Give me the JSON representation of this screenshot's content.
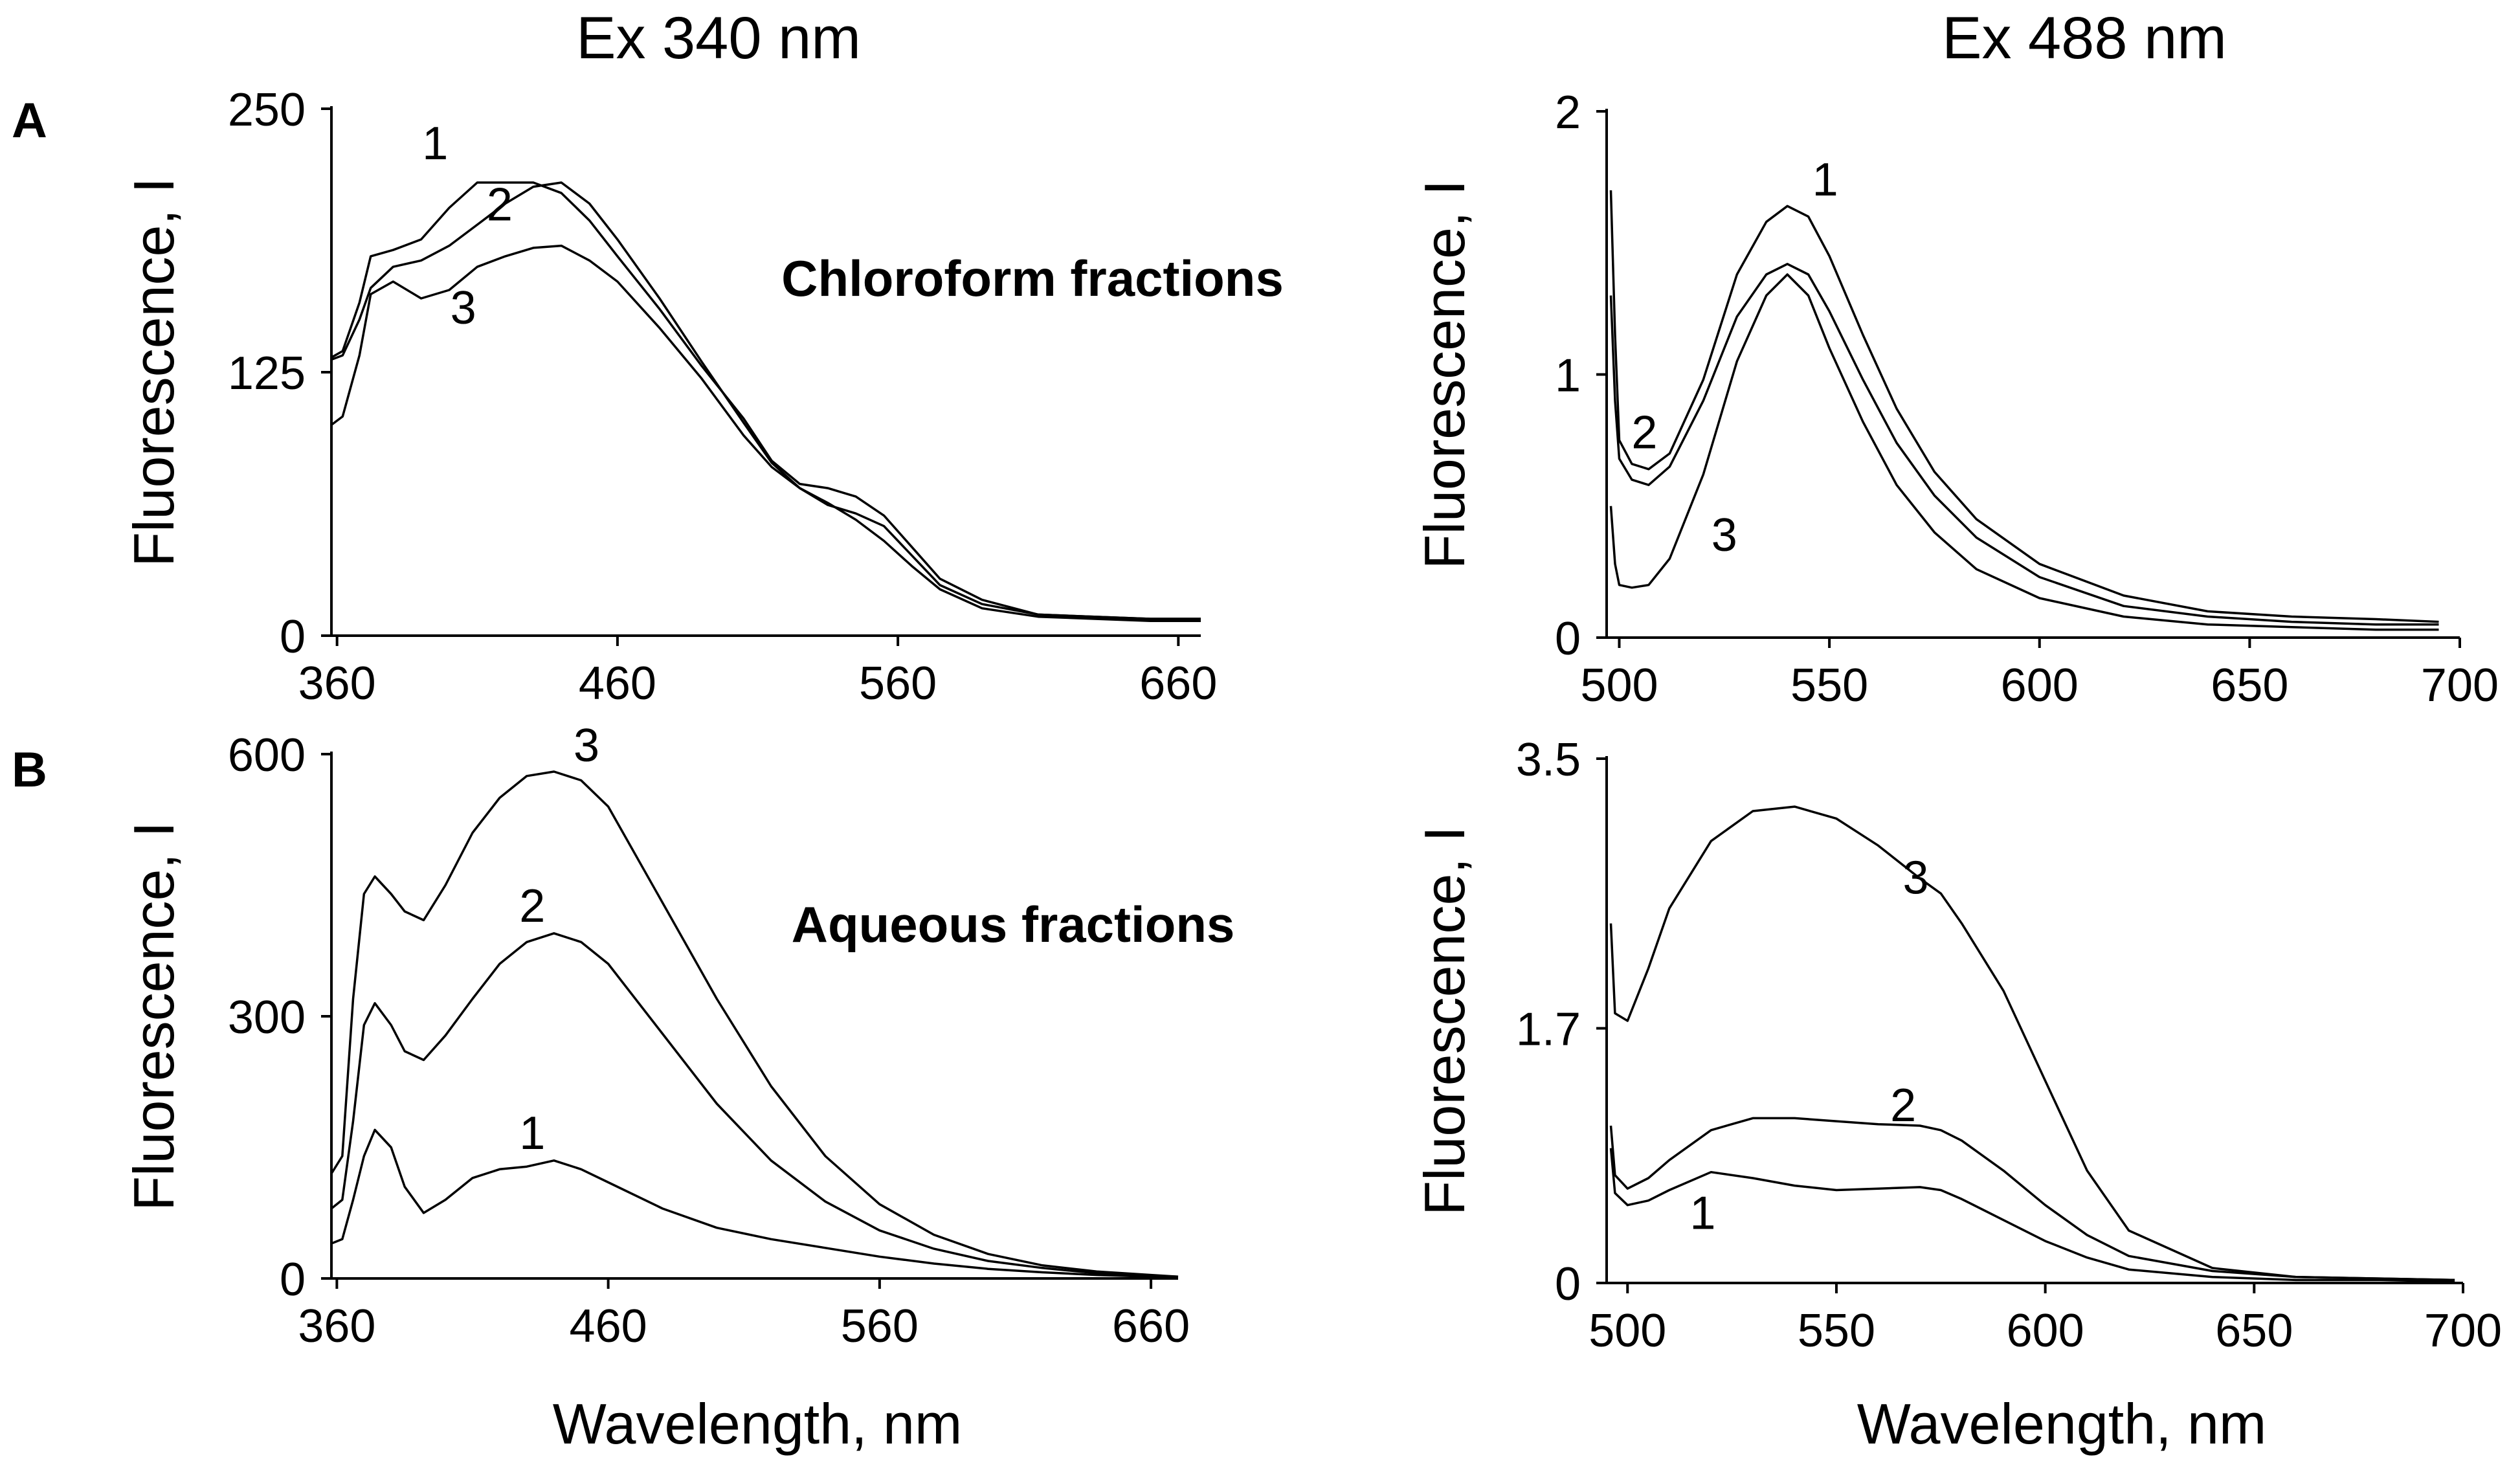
{
  "chart_data": {
    "type": "line",
    "column_titles": [
      "Ex 340 nm",
      "Ex 488 nm"
    ],
    "panel_letters": [
      "A",
      "B"
    ],
    "ylabel": "Fluorescence, I",
    "xlabel": "Wavelength, nm",
    "panels": [
      {
        "id": "A1",
        "row": "A",
        "excitation": "Ex 340 nm",
        "annotation": "Chloroform fractions",
        "xlim": [
          358,
          668
        ],
        "ylim": [
          0,
          250
        ],
        "xticks": [
          360,
          460,
          560,
          660
        ],
        "ytick_values": [
          0,
          125,
          250
        ],
        "ytick_labels": [
          "0",
          "125",
          "250"
        ],
        "series": [
          {
            "name": "1",
            "x": [
              358,
              362,
              368,
              372,
              380,
              390,
              400,
              410,
              420,
              430,
              440,
              450,
              460,
              475,
              490,
              505,
              515,
              525,
              535,
              545,
              555,
              565,
              575,
              590,
              610,
              630,
              650,
              668
            ],
            "y": [
              132,
              135,
              158,
              180,
              183,
              188,
              203,
              215,
              215,
              215,
              210,
              197,
              180,
              155,
              128,
              103,
              83,
              72,
              70,
              66,
              57,
              42,
              27,
              17,
              10,
              9,
              8,
              8
            ]
          },
          {
            "name": "2",
            "x": [
              358,
              362,
              368,
              372,
              380,
              390,
              400,
              410,
              420,
              430,
              440,
              450,
              460,
              475,
              490,
              505,
              515,
              525,
              535,
              545,
              555,
              565,
              575,
              590,
              610,
              630,
              650,
              668
            ],
            "y": [
              131,
              133,
              150,
              165,
              175,
              178,
              185,
              195,
              205,
              213,
              215,
              205,
              188,
              160,
              130,
              101,
              82,
              70,
              62,
              58,
              52,
              38,
              24,
              15,
              10,
              9,
              8,
              8
            ]
          },
          {
            "name": "3",
            "x": [
              358,
              362,
              368,
              372,
              380,
              390,
              400,
              410,
              420,
              430,
              440,
              450,
              460,
              475,
              490,
              505,
              515,
              525,
              535,
              545,
              555,
              565,
              575,
              590,
              610,
              630,
              650,
              668
            ],
            "y": [
              100,
              104,
              133,
              162,
              168,
              160,
              164,
              175,
              180,
              184,
              185,
              178,
              168,
              146,
              122,
              95,
              80,
              70,
              63,
              55,
              45,
              33,
              22,
              13,
              9,
              8,
              7,
              7
            ]
          }
        ],
        "curve_label_anchors": [
          {
            "name": "1",
            "x": 395,
            "y": 226
          },
          {
            "name": "2",
            "x": 418,
            "y": 197
          },
          {
            "name": "3",
            "x": 405,
            "y": 148
          }
        ]
      },
      {
        "id": "A2",
        "row": "A",
        "excitation": "Ex 488 nm",
        "annotation": "",
        "xlim": [
          497,
          700
        ],
        "ylim": [
          0,
          2
        ],
        "xticks": [
          500,
          550,
          600,
          650,
          700
        ],
        "ytick_values": [
          0,
          1,
          2
        ],
        "ytick_labels": [
          "0",
          "1",
          "2"
        ],
        "series": [
          {
            "name": "1",
            "x": [
              498,
              499,
              500,
              503,
              507,
              512,
              520,
              528,
              535,
              540,
              545,
              550,
              558,
              566,
              575,
              585,
              600,
              620,
              640,
              660,
              680,
              695
            ],
            "y": [
              1.7,
              1.15,
              0.75,
              0.66,
              0.64,
              0.7,
              0.98,
              1.38,
              1.58,
              1.64,
              1.6,
              1.45,
              1.15,
              0.87,
              0.63,
              0.45,
              0.28,
              0.16,
              0.1,
              0.08,
              0.07,
              0.06
            ]
          },
          {
            "name": "2",
            "x": [
              498,
              499,
              500,
              503,
              507,
              512,
              520,
              528,
              535,
              540,
              545,
              550,
              558,
              566,
              575,
              585,
              600,
              620,
              640,
              660,
              680,
              695
            ],
            "y": [
              1.3,
              0.9,
              0.68,
              0.6,
              0.58,
              0.65,
              0.9,
              1.22,
              1.38,
              1.42,
              1.38,
              1.24,
              0.98,
              0.74,
              0.54,
              0.38,
              0.23,
              0.12,
              0.08,
              0.06,
              0.05,
              0.05
            ]
          },
          {
            "name": "3",
            "x": [
              498,
              499,
              500,
              503,
              507,
              512,
              520,
              528,
              535,
              540,
              545,
              550,
              558,
              566,
              575,
              585,
              600,
              620,
              640,
              660,
              680,
              695
            ],
            "y": [
              0.5,
              0.28,
              0.2,
              0.19,
              0.2,
              0.3,
              0.62,
              1.05,
              1.3,
              1.38,
              1.3,
              1.1,
              0.82,
              0.58,
              0.4,
              0.26,
              0.15,
              0.08,
              0.05,
              0.04,
              0.03,
              0.03
            ]
          }
        ],
        "curve_label_anchors": [
          {
            "name": "1",
            "x": 549,
            "y": 1.68
          },
          {
            "name": "2",
            "x": 506,
            "y": 0.72
          },
          {
            "name": "3",
            "x": 525,
            "y": 0.33
          }
        ]
      },
      {
        "id": "B1",
        "row": "B",
        "excitation": "Ex 340 nm",
        "annotation": "Aqueous fractions",
        "xlim": [
          358,
          670
        ],
        "ylim": [
          0,
          600
        ],
        "xticks": [
          360,
          460,
          560,
          660
        ],
        "ytick_values": [
          0,
          300,
          600
        ],
        "ytick_labels": [
          "0",
          "300",
          "600"
        ],
        "series": [
          {
            "name": "1",
            "x": [
              358,
              362,
              366,
              370,
              374,
              380,
              385,
              392,
              400,
              410,
              420,
              430,
              440,
              450,
              460,
              480,
              500,
              520,
              540,
              560,
              580,
              600,
              620,
              640,
              660,
              670
            ],
            "y": [
              40,
              45,
              90,
              140,
              170,
              150,
              105,
              75,
              90,
              115,
              125,
              128,
              135,
              125,
              110,
              80,
              58,
              45,
              35,
              25,
              17,
              11,
              7,
              4,
              2,
              1
            ]
          },
          {
            "name": "2",
            "x": [
              358,
              362,
              366,
              370,
              374,
              380,
              385,
              392,
              400,
              410,
              420,
              430,
              440,
              450,
              460,
              480,
              500,
              520,
              540,
              560,
              580,
              600,
              620,
              640,
              660,
              670
            ],
            "y": [
              80,
              90,
              180,
              290,
              315,
              290,
              260,
              250,
              278,
              320,
              360,
              385,
              395,
              385,
              360,
              280,
              200,
              135,
              88,
              55,
              34,
              20,
              12,
              6,
              3,
              2
            ]
          },
          {
            "name": "3",
            "x": [
              358,
              362,
              366,
              370,
              374,
              380,
              385,
              392,
              400,
              410,
              420,
              430,
              440,
              450,
              460,
              480,
              500,
              520,
              540,
              560,
              580,
              600,
              620,
              640,
              660,
              670
            ],
            "y": [
              120,
              140,
              320,
              440,
              460,
              440,
              420,
              410,
              450,
              510,
              550,
              575,
              580,
              570,
              540,
              430,
              320,
              220,
              140,
              85,
              50,
              28,
              15,
              8,
              4,
              2
            ]
          }
        ],
        "curve_label_anchors": [
          {
            "name": "1",
            "x": 432,
            "y": 148
          },
          {
            "name": "2",
            "x": 432,
            "y": 408
          },
          {
            "name": "3",
            "x": 452,
            "y": 592
          }
        ]
      },
      {
        "id": "B2",
        "row": "B",
        "excitation": "Ex 488 nm",
        "annotation": "",
        "xlim": [
          495,
          700
        ],
        "ylim": [
          0,
          3.5
        ],
        "xticks": [
          500,
          550,
          600,
          650,
          700
        ],
        "ytick_values": [
          0,
          1.7,
          3.5
        ],
        "ytick_labels": [
          "0",
          "1.7",
          "3.5"
        ],
        "series": [
          {
            "name": "1",
            "x": [
              496,
              497,
              500,
              505,
              510,
              520,
              530,
              540,
              550,
              560,
              570,
              575,
              580,
              590,
              600,
              610,
              620,
              640,
              660,
              680,
              698
            ],
            "y": [
              0.9,
              0.6,
              0.52,
              0.55,
              0.62,
              0.74,
              0.7,
              0.65,
              0.62,
              0.63,
              0.64,
              0.62,
              0.56,
              0.42,
              0.28,
              0.17,
              0.09,
              0.04,
              0.02,
              0.02,
              0.01
            ]
          },
          {
            "name": "2",
            "x": [
              496,
              497,
              500,
              505,
              510,
              520,
              530,
              540,
              550,
              560,
              570,
              575,
              580,
              590,
              600,
              610,
              620,
              640,
              660,
              680,
              698
            ],
            "y": [
              1.05,
              0.72,
              0.63,
              0.7,
              0.82,
              1.02,
              1.1,
              1.1,
              1.08,
              1.06,
              1.05,
              1.02,
              0.95,
              0.75,
              0.52,
              0.32,
              0.18,
              0.08,
              0.04,
              0.03,
              0.02
            ]
          },
          {
            "name": "3",
            "x": [
              496,
              497,
              500,
              505,
              510,
              520,
              530,
              540,
              550,
              560,
              570,
              575,
              580,
              590,
              600,
              610,
              620,
              640,
              660,
              680,
              698
            ],
            "y": [
              2.4,
              1.8,
              1.75,
              2.1,
              2.5,
              2.95,
              3.15,
              3.18,
              3.1,
              2.92,
              2.7,
              2.6,
              2.4,
              1.95,
              1.35,
              0.75,
              0.35,
              0.1,
              0.04,
              0.03,
              0.02
            ]
          }
        ],
        "curve_label_anchors": [
          {
            "name": "1",
            "x": 518,
            "y": 0.36
          },
          {
            "name": "2",
            "x": 566,
            "y": 1.08
          },
          {
            "name": "3",
            "x": 569,
            "y": 2.6
          }
        ]
      }
    ]
  }
}
